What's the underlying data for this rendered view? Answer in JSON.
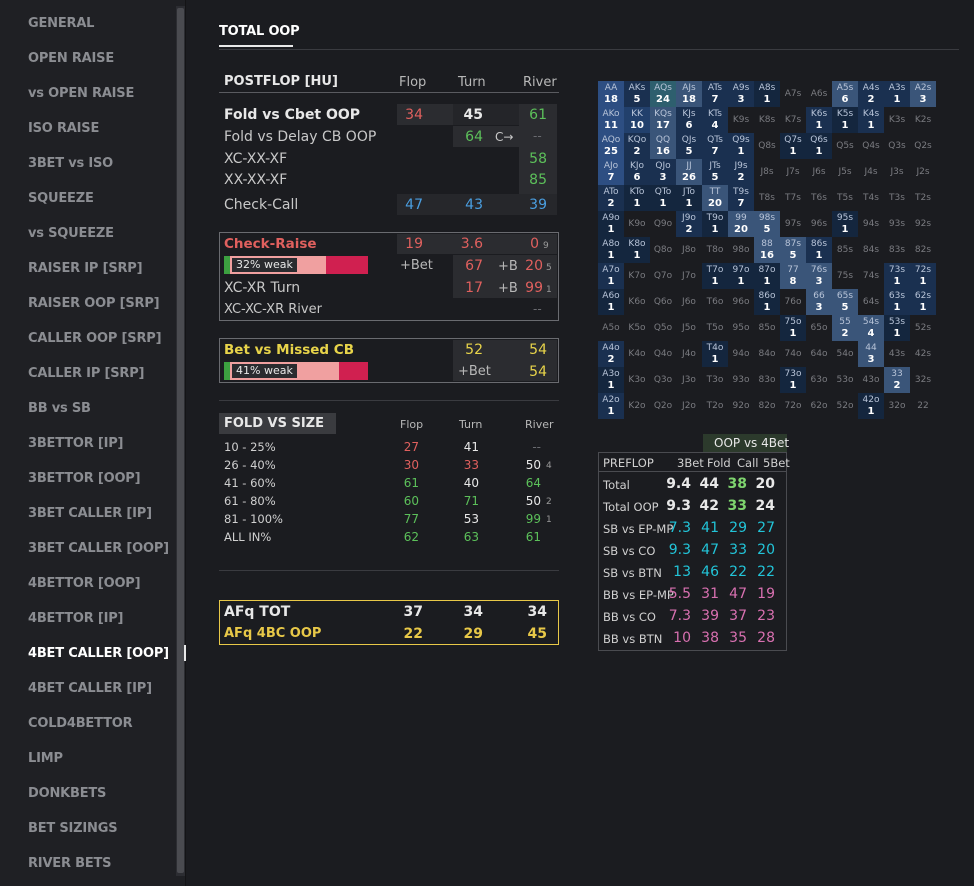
{
  "sidebar": {
    "items": [
      "GENERAL",
      "OPEN RAISE",
      "vs OPEN RAISE",
      "ISO RAISE",
      "3BET vs ISO",
      "SQUEEZE",
      "vs SQUEEZE",
      "RAISER IP [SRP]",
      "RAISER OOP [SRP]",
      "CALLER OOP [SRP]",
      "CALLER IP [SRP]",
      "BB vs SB",
      "3BETTOR [IP]",
      "3BETTOR [OOP]",
      "3BET CALLER [IP]",
      "3BET CALLER [OOP]",
      "4BETTOR [OOP]",
      "4BETTOR [IP]",
      "4BET CALLER [OOP]",
      "4BET CALLER [IP]",
      "COLD4BETTOR",
      "LIMP",
      "DONKBETS",
      "BET SIZINGS",
      "RIVER BETS"
    ],
    "active": "4BET CALLER [OOP]"
  },
  "page": {
    "title": "TOTAL OOP"
  },
  "postflop": {
    "title": "POSTFLOP [HU]",
    "cols": [
      "Flop",
      "Turn",
      "River"
    ],
    "fold_cbet": {
      "label": "Fold vs Cbet OOP",
      "flop": "34",
      "turn": "45",
      "river": "61"
    },
    "fold_delay": {
      "label": "Fold vs Delay CB OOP",
      "turn": "64",
      "arrow": "C→",
      "river": "--"
    },
    "xc_xx_xf": {
      "label": "XC-XX-XF",
      "river": "58"
    },
    "xx_xx_xf": {
      "label": "XX-XX-XF",
      "river": "85"
    },
    "check_call": {
      "label": "Check-Call",
      "flop": "47",
      "turn": "43",
      "river": "39"
    }
  },
  "check_raise": {
    "label": "Check-Raise",
    "flop": "19",
    "turn": "3.6",
    "river": "0",
    "river_sub": "9",
    "bar_label": "32% weak",
    "bar_value": 0.32,
    "bet_label": "+Bet",
    "b_label": "+B",
    "row2_turn": "67",
    "row2_river": "20",
    "row2_river_sub": "5",
    "xr_turn": {
      "label": "XC-XR Turn",
      "turn": "17",
      "river": "99",
      "river_sub": "1"
    },
    "xr_river": {
      "label": "XC-XC-XR River",
      "river": "--"
    }
  },
  "bet_missed": {
    "label": "Bet vs Missed CB",
    "turn": "52",
    "river": "54",
    "bar_label": "41% weak",
    "bar_value": 0.41,
    "bet_label": "+Bet",
    "bet_river": "54"
  },
  "fold_size": {
    "title": "FOLD VS SIZE",
    "cols": [
      "Flop",
      "Turn",
      "River"
    ],
    "rows": [
      {
        "label": "10 - 25%",
        "flop": "27",
        "turn": "41",
        "river": "--",
        "river_sub": ""
      },
      {
        "label": "26 - 40%",
        "flop": "30",
        "turn": "33",
        "river": "50",
        "river_sub": "4"
      },
      {
        "label": "41 - 60%",
        "flop": "61",
        "turn": "40",
        "river": "64",
        "river_sub": ""
      },
      {
        "label": "61 - 80%",
        "flop": "60",
        "turn": "71",
        "river": "50",
        "river_sub": "2"
      },
      {
        "label": "81 - 100%",
        "flop": "77",
        "turn": "53",
        "river": "99",
        "river_sub": "1"
      },
      {
        "label": "ALL IN%",
        "flop": "62",
        "turn": "63",
        "river": "61",
        "river_sub": ""
      }
    ]
  },
  "afq": {
    "tot": {
      "label": "AFq TOT",
      "flop": "37",
      "turn": "34",
      "river": "34"
    },
    "fourbc": {
      "label": "AFq 4BC OOP",
      "flop": "22",
      "turn": "29",
      "river": "45"
    }
  },
  "preflop": {
    "head": "OOP vs 4Bet",
    "title": "PREFLOP",
    "cols": [
      "3Bet",
      "Fold",
      "Call",
      "5Bet"
    ],
    "rows": [
      {
        "label": "Total",
        "v": [
          "9.4",
          "44",
          "38",
          "20"
        ]
      },
      {
        "label": "Total OOP",
        "v": [
          "9.3",
          "42",
          "33",
          "24"
        ]
      },
      {
        "label": "SB vs EP-MP",
        "v": [
          "7.3",
          "41",
          "29",
          "27"
        ]
      },
      {
        "label": "SB vs CO",
        "v": [
          "9.3",
          "47",
          "33",
          "20"
        ]
      },
      {
        "label": "SB vs BTN",
        "v": [
          "13",
          "46",
          "22",
          "22"
        ]
      },
      {
        "label": "BB vs EP-MP",
        "v": [
          "5.5",
          "31",
          "47",
          "19"
        ]
      },
      {
        "label": "BB vs CO",
        "v": [
          "7.3",
          "39",
          "37",
          "23"
        ]
      },
      {
        "label": "BB vs BTN",
        "v": [
          "10",
          "38",
          "35",
          "28"
        ]
      }
    ]
  },
  "range_grid": {
    "cells": [
      [
        "AA",
        "18",
        1
      ],
      [
        "AKs",
        "5",
        3
      ],
      [
        "AQs",
        "24",
        5
      ],
      [
        "AJs",
        "18",
        6
      ],
      [
        "ATs",
        "7",
        3
      ],
      [
        "A9s",
        "3",
        3
      ],
      [
        "A8s",
        "1",
        4
      ],
      [
        "A7s",
        "",
        0
      ],
      [
        "A6s",
        "",
        0
      ],
      [
        "A5s",
        "6",
        6
      ],
      [
        "A4s",
        "2",
        3
      ],
      [
        "A3s",
        "1",
        3
      ],
      [
        "A2s",
        "3",
        6
      ],
      [
        "AKo",
        "11",
        1
      ],
      [
        "KK",
        "10",
        2
      ],
      [
        "KQs",
        "17",
        6
      ],
      [
        "KJs",
        "6",
        3
      ],
      [
        "KTs",
        "4",
        3
      ],
      [
        "K9s",
        "",
        0
      ],
      [
        "K8s",
        "",
        0
      ],
      [
        "K7s",
        "",
        0
      ],
      [
        "K6s",
        "1",
        3
      ],
      [
        "K5s",
        "1",
        4
      ],
      [
        "K4s",
        "1",
        3
      ],
      [
        "K3s",
        "",
        0
      ],
      [
        "K2s",
        "",
        0
      ],
      [
        "AQo",
        "25",
        1
      ],
      [
        "KQo",
        "2",
        3
      ],
      [
        "QQ",
        "16",
        6
      ],
      [
        "QJs",
        "5",
        3
      ],
      [
        "QTs",
        "7",
        3
      ],
      [
        "Q9s",
        "1",
        3
      ],
      [
        "Q8s",
        "",
        0
      ],
      [
        "Q7s",
        "1",
        4
      ],
      [
        "Q6s",
        "1",
        4
      ],
      [
        "Q5s",
        "",
        0
      ],
      [
        "Q4s",
        "",
        0
      ],
      [
        "Q3s",
        "",
        0
      ],
      [
        "Q2s",
        "",
        0
      ],
      [
        "AJo",
        "7",
        1
      ],
      [
        "KJo",
        "6",
        3
      ],
      [
        "QJo",
        "3",
        3
      ],
      [
        "JJ",
        "26",
        6
      ],
      [
        "JTs",
        "5",
        3
      ],
      [
        "J9s",
        "2",
        3
      ],
      [
        "J8s",
        "",
        0
      ],
      [
        "J7s",
        "",
        0
      ],
      [
        "J6s",
        "",
        0
      ],
      [
        "J5s",
        "",
        0
      ],
      [
        "J4s",
        "",
        0
      ],
      [
        "J3s",
        "",
        0
      ],
      [
        "J2s",
        "",
        0
      ],
      [
        "ATo",
        "2",
        3
      ],
      [
        "KTo",
        "1",
        4
      ],
      [
        "QTo",
        "1",
        4
      ],
      [
        "JTo",
        "1",
        4
      ],
      [
        "TT",
        "20",
        6
      ],
      [
        "T9s",
        "7",
        3
      ],
      [
        "T8s",
        "",
        0
      ],
      [
        "T7s",
        "",
        0
      ],
      [
        "T6s",
        "",
        0
      ],
      [
        "T5s",
        "",
        0
      ],
      [
        "T4s",
        "",
        0
      ],
      [
        "T3s",
        "",
        0
      ],
      [
        "T2s",
        "",
        0
      ],
      [
        "A9o",
        "1",
        4
      ],
      [
        "K9o",
        "",
        0
      ],
      [
        "Q9o",
        "",
        0
      ],
      [
        "J9o",
        "2",
        3
      ],
      [
        "T9o",
        "1",
        4
      ],
      [
        "99",
        "20",
        6
      ],
      [
        "98s",
        "5",
        6
      ],
      [
        "97s",
        "",
        0
      ],
      [
        "96s",
        "",
        0
      ],
      [
        "95s",
        "1",
        4
      ],
      [
        "94s",
        "",
        0
      ],
      [
        "93s",
        "",
        0
      ],
      [
        "92s",
        "",
        0
      ],
      [
        "A8o",
        "1",
        4
      ],
      [
        "K8o",
        "1",
        4
      ],
      [
        "Q8o",
        "",
        0
      ],
      [
        "J8o",
        "",
        0
      ],
      [
        "T8o",
        "",
        0
      ],
      [
        "98o",
        "",
        0
      ],
      [
        "88",
        "16",
        6
      ],
      [
        "87s",
        "5",
        6
      ],
      [
        "86s",
        "1",
        3
      ],
      [
        "85s",
        "",
        0
      ],
      [
        "84s",
        "",
        0
      ],
      [
        "83s",
        "",
        0
      ],
      [
        "82s",
        "",
        0
      ],
      [
        "A7o",
        "1",
        3
      ],
      [
        "K7o",
        "",
        0
      ],
      [
        "Q7o",
        "",
        0
      ],
      [
        "J7o",
        "",
        0
      ],
      [
        "T7o",
        "1",
        4
      ],
      [
        "97o",
        "1",
        4
      ],
      [
        "87o",
        "1",
        4
      ],
      [
        "77",
        "8",
        6
      ],
      [
        "76s",
        "3",
        6
      ],
      [
        "75s",
        "",
        0
      ],
      [
        "74s",
        "",
        0
      ],
      [
        "73s",
        "1",
        3
      ],
      [
        "72s",
        "1",
        3
      ],
      [
        "A6o",
        "1",
        4
      ],
      [
        "K6o",
        "",
        0
      ],
      [
        "Q6o",
        "",
        0
      ],
      [
        "J6o",
        "",
        0
      ],
      [
        "T6o",
        "",
        0
      ],
      [
        "96o",
        "",
        0
      ],
      [
        "86o",
        "1",
        4
      ],
      [
        "76o",
        "",
        0
      ],
      [
        "66",
        "3",
        6
      ],
      [
        "65s",
        "5",
        6
      ],
      [
        "64s",
        "",
        0
      ],
      [
        "63s",
        "1",
        3
      ],
      [
        "62s",
        "1",
        3
      ],
      [
        "A5o",
        "",
        0
      ],
      [
        "K5o",
        "",
        0
      ],
      [
        "Q5o",
        "",
        0
      ],
      [
        "J5o",
        "",
        0
      ],
      [
        "T5o",
        "",
        0
      ],
      [
        "95o",
        "",
        0
      ],
      [
        "85o",
        "",
        0
      ],
      [
        "75o",
        "1",
        4
      ],
      [
        "65o",
        "",
        0
      ],
      [
        "55",
        "2",
        6
      ],
      [
        "54s",
        "4",
        6
      ],
      [
        "53s",
        "1",
        4
      ],
      [
        "52s",
        "",
        0
      ],
      [
        "A4o",
        "2",
        3
      ],
      [
        "K4o",
        "",
        0
      ],
      [
        "Q4o",
        "",
        0
      ],
      [
        "J4o",
        "",
        0
      ],
      [
        "T4o",
        "1",
        4
      ],
      [
        "94o",
        "",
        0
      ],
      [
        "84o",
        "",
        0
      ],
      [
        "74o",
        "",
        0
      ],
      [
        "64o",
        "",
        0
      ],
      [
        "54o",
        "",
        0
      ],
      [
        "44",
        "3",
        6
      ],
      [
        "43s",
        "",
        0
      ],
      [
        "42s",
        "",
        0
      ],
      [
        "A3o",
        "1",
        4
      ],
      [
        "K3o",
        "",
        0
      ],
      [
        "Q3o",
        "",
        0
      ],
      [
        "J3o",
        "",
        0
      ],
      [
        "T3o",
        "",
        0
      ],
      [
        "93o",
        "",
        0
      ],
      [
        "83o",
        "",
        0
      ],
      [
        "73o",
        "1",
        4
      ],
      [
        "63o",
        "",
        0
      ],
      [
        "53o",
        "",
        0
      ],
      [
        "43o",
        "",
        0
      ],
      [
        "33",
        "2",
        6
      ],
      [
        "32s",
        "",
        0
      ],
      [
        "A2o",
        "1",
        3
      ],
      [
        "K2o",
        "",
        0
      ],
      [
        "Q2o",
        "",
        0
      ],
      [
        "J2o",
        "",
        0
      ],
      [
        "T2o",
        "",
        0
      ],
      [
        "92o",
        "",
        0
      ],
      [
        "82o",
        "",
        0
      ],
      [
        "72o",
        "",
        0
      ],
      [
        "62o",
        "",
        0
      ],
      [
        "52o",
        "",
        0
      ],
      [
        "42o",
        "1",
        4
      ],
      [
        "32o",
        "",
        0
      ],
      [
        "22",
        "",
        0
      ]
    ]
  }
}
